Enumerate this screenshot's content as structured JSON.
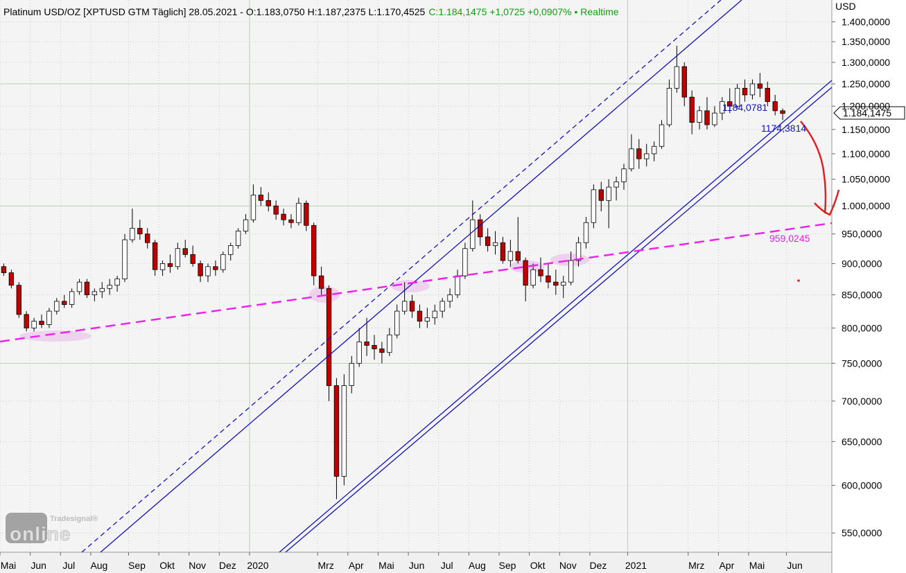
{
  "chart_data": {
    "type": "candlestick",
    "title": "Platinum USD/OZ [XPTUSD GTM Täglich] 28.05.2021 - O:1.183,0750 H:1.187,2375 L:1.170,4525",
    "title_change": "C:1.184,1475 +1,0725 +0,0907% • Realtime",
    "y_axis_label": "USD",
    "categories": [
      "Mai",
      null,
      null,
      null,
      "Jun",
      null,
      null,
      null,
      "Jul",
      null,
      null,
      null,
      "Aug",
      null,
      null,
      null,
      null,
      "Sep",
      null,
      null,
      null,
      "Okt",
      null,
      null,
      null,
      "Nov",
      null,
      null,
      null,
      "Dez",
      null,
      null,
      null,
      "2020",
      null,
      null,
      null,
      null,
      null,
      null,
      null,
      null,
      "Mrz",
      null,
      null,
      null,
      "Apr",
      null,
      null,
      null,
      "Mai",
      null,
      null,
      null,
      "Jun",
      null,
      null,
      null,
      "Jul",
      null,
      null,
      null,
      "Aug",
      null,
      null,
      null,
      "Sep",
      null,
      null,
      null,
      "Okt",
      null,
      null,
      null,
      "Nov",
      null,
      null,
      null,
      "Dez",
      null,
      null,
      null,
      null,
      "2021",
      null,
      null,
      null,
      null,
      null,
      null,
      null,
      "Mrz",
      null,
      null,
      null,
      "Apr",
      null,
      null,
      null,
      "Mai",
      null,
      null,
      null,
      null,
      "Jun",
      null,
      null,
      null,
      null,
      null
    ],
    "open": [
      895,
      885,
      865,
      820,
      800,
      810,
      805,
      825,
      840,
      835,
      855,
      870,
      850,
      855,
      860,
      865,
      875,
      940,
      960,
      950,
      935,
      890,
      900,
      895,
      925,
      915,
      900,
      880,
      895,
      890,
      915,
      930,
      955,
      975,
      1020,
      1010,
      1000,
      985,
      975,
      970,
      1005,
      965,
      880,
      860,
      720,
      610,
      720,
      750,
      780,
      775,
      770,
      765,
      790,
      825,
      840,
      825,
      810,
      815,
      825,
      840,
      850,
      880,
      925,
      975,
      945,
      930,
      935,
      905,
      920,
      905,
      865,
      890,
      880,
      870,
      865,
      870,
      905,
      935,
      970,
      1030,
      1010,
      1035,
      1045,
      1070,
      1110,
      1090,
      1100,
      1115,
      1160,
      1240,
      1290,
      1220,
      1165,
      1190,
      1160,
      1185,
      1210,
      1200,
      1240,
      1225,
      1250,
      1240,
      1210,
      1190,
      null,
      null,
      null,
      null,
      null,
      null
    ],
    "high": [
      900,
      890,
      870,
      825,
      815,
      820,
      830,
      845,
      850,
      860,
      875,
      875,
      860,
      870,
      875,
      880,
      950,
      995,
      975,
      960,
      940,
      905,
      915,
      935,
      940,
      930,
      905,
      900,
      905,
      920,
      935,
      960,
      985,
      1040,
      1035,
      1025,
      1010,
      995,
      985,
      1015,
      1010,
      970,
      895,
      865,
      730,
      735,
      760,
      800,
      815,
      790,
      780,
      800,
      835,
      870,
      850,
      835,
      830,
      835,
      845,
      860,
      890,
      935,
      1010,
      985,
      960,
      955,
      945,
      940,
      980,
      910,
      900,
      910,
      900,
      890,
      880,
      920,
      945,
      980,
      1040,
      1045,
      1050,
      1055,
      1080,
      1140,
      1130,
      1120,
      1125,
      1170,
      1260,
      1340,
      1300,
      1235,
      1200,
      1220,
      1200,
      1220,
      1240,
      1250,
      1260,
      1260,
      1275,
      1255,
      1225,
      1195,
      null,
      null,
      null,
      null,
      null,
      null
    ],
    "low": [
      880,
      860,
      815,
      795,
      795,
      800,
      800,
      820,
      830,
      830,
      850,
      845,
      840,
      845,
      850,
      855,
      870,
      935,
      940,
      925,
      880,
      880,
      885,
      890,
      910,
      895,
      870,
      870,
      880,
      885,
      905,
      925,
      950,
      970,
      1000,
      990,
      975,
      965,
      960,
      965,
      955,
      865,
      850,
      700,
      585,
      600,
      710,
      745,
      760,
      755,
      750,
      760,
      785,
      820,
      815,
      800,
      800,
      805,
      815,
      830,
      845,
      875,
      920,
      930,
      920,
      915,
      900,
      895,
      900,
      840,
      860,
      870,
      860,
      850,
      845,
      865,
      895,
      925,
      960,
      990,
      960,
      1010,
      1030,
      1065,
      1070,
      1075,
      1085,
      1110,
      1155,
      1230,
      1200,
      1140,
      1150,
      1150,
      1155,
      1170,
      1185,
      1195,
      1210,
      1215,
      1220,
      1200,
      1180,
      1170,
      null,
      null,
      null,
      null,
      null,
      null
    ],
    "close": [
      885,
      865,
      820,
      800,
      810,
      805,
      825,
      840,
      835,
      855,
      870,
      850,
      855,
      860,
      865,
      875,
      940,
      960,
      950,
      935,
      890,
      900,
      895,
      925,
      915,
      900,
      880,
      895,
      890,
      915,
      930,
      955,
      975,
      1020,
      1010,
      1000,
      985,
      975,
      970,
      1005,
      965,
      880,
      860,
      720,
      610,
      720,
      750,
      780,
      775,
      770,
      765,
      790,
      825,
      840,
      825,
      810,
      815,
      825,
      840,
      850,
      880,
      925,
      975,
      945,
      930,
      935,
      905,
      920,
      905,
      865,
      890,
      880,
      870,
      865,
      870,
      905,
      935,
      970,
      1030,
      1010,
      1035,
      1045,
      1070,
      1110,
      1090,
      1100,
      1115,
      1160,
      1240,
      1290,
      1220,
      1165,
      1190,
      1160,
      1185,
      1210,
      1200,
      1240,
      1225,
      1250,
      1240,
      1210,
      1190,
      1184.1475,
      null,
      null,
      null,
      null,
      null,
      null
    ],
    "up_color": "#ffffff",
    "down_color": "#c00000",
    "ylim": [
      531,
      1457
    ],
    "log_scale": true,
    "grid": true,
    "yticks": [
      {
        "value": 1400,
        "label": "1.400,0000"
      },
      {
        "value": 1350,
        "label": "1.350,0000"
      },
      {
        "value": 1300,
        "label": "1.300,0000"
      },
      {
        "value": 1250,
        "label": "1.250,0000"
      },
      {
        "value": 1200,
        "label": "1.200,0000"
      },
      {
        "value": 1150,
        "label": "1.150,0000"
      },
      {
        "value": 1100,
        "label": "1.100,0000"
      },
      {
        "value": 1050,
        "label": "1.050,0000"
      },
      {
        "value": 1000,
        "label": "1.000,0000"
      },
      {
        "value": 950,
        "label": "950,0000"
      },
      {
        "value": 900,
        "label": "900,0000"
      },
      {
        "value": 850,
        "label": "850,0000"
      },
      {
        "value": 800,
        "label": "800,0000"
      },
      {
        "value": 750,
        "label": "750,0000"
      },
      {
        "value": 700,
        "label": "700,0000"
      },
      {
        "value": 650,
        "label": "650,0000"
      },
      {
        "value": 600,
        "label": "600,0000"
      },
      {
        "value": 550,
        "label": "550,0000"
      }
    ],
    "last_price_label": "1.184,1475",
    "channel_labels": [
      "1184,0781",
      "1174,3814"
    ],
    "support_label": "959,0245",
    "logo": {
      "brand": "Tradesignal®",
      "name": "online"
    }
  }
}
